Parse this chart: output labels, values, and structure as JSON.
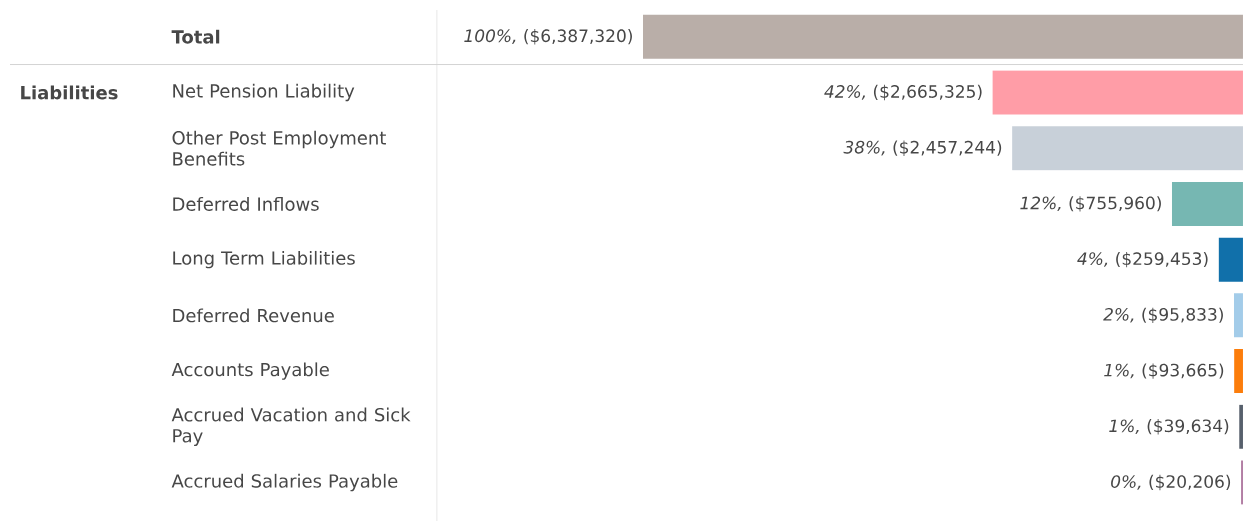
{
  "chart_data": {
    "type": "bar",
    "orientation": "horizontal",
    "categories": [
      "Total",
      "Net Pension Liability",
      "Other Post Employment Benefits",
      "Deferred Inflows",
      "Long Term Liabilities",
      "Deferred Revenue",
      "Accounts Payable",
      "Accrued Vacation and Sick Pay",
      "Accrued Salaries Payable"
    ],
    "values": [
      6387320,
      2665325,
      2457244,
      755960,
      259453,
      95833,
      93665,
      39634,
      20206
    ],
    "colors": [
      "#b9aea8",
      "#ff9da7",
      "#c8d0d9",
      "#76b7b2",
      "#1170aa",
      "#a3cce9",
      "#fc7d0b",
      "#57606c",
      "#b07aa1"
    ],
    "value_labels": [
      "*100%,* ($6,387,320)",
      "*42%,* ($2,665,325)",
      "*38%,* ($2,457,244)",
      "*12%,* ($755,960)",
      "*4%,* ($259,453)",
      "*2%,* ($95,833)",
      "*1%,* ($93,665)",
      "*1%,* ($39,634)",
      "*0%,* ($20,206)"
    ],
    "annotations": [
      "Liabilities"
    ]
  }
}
